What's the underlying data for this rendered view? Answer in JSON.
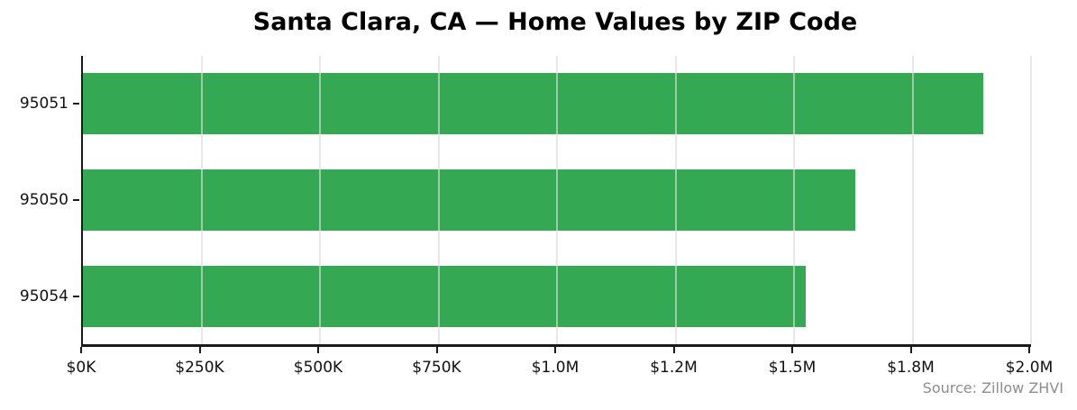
{
  "colors": {
    "background": "#ffffff",
    "bar": "#34a853",
    "axis": "#1a1a1a",
    "tick_label": "#111111",
    "title": "#000000",
    "source_text": "#8e8e8e",
    "gridline": "#e8e8e8"
  },
  "chart_data": {
    "type": "bar",
    "orientation": "horizontal",
    "title": "Santa Clara, CA — Home Values by ZIP Code",
    "categories": [
      "95051",
      "95050",
      "95054"
    ],
    "values": [
      1900000,
      1630000,
      1525000
    ],
    "value_unit": "USD",
    "xlabel": "",
    "ylabel": "",
    "xlim": [
      0,
      2000000
    ],
    "x_ticks": [
      {
        "value": 0,
        "label": "$0K"
      },
      {
        "value": 250000,
        "label": "$250K"
      },
      {
        "value": 500000,
        "label": "$500K"
      },
      {
        "value": 750000,
        "label": "$750K"
      },
      {
        "value": 1000000,
        "label": "$1.0M"
      },
      {
        "value": 1250000,
        "label": "$1.2M"
      },
      {
        "value": 1500000,
        "label": "$1.5M"
      },
      {
        "value": 1750000,
        "label": "$1.8M"
      },
      {
        "value": 2000000,
        "label": "$2.0M"
      }
    ],
    "grid": "vertical",
    "legend": "none",
    "source": "Source: Zillow ZHVI"
  }
}
